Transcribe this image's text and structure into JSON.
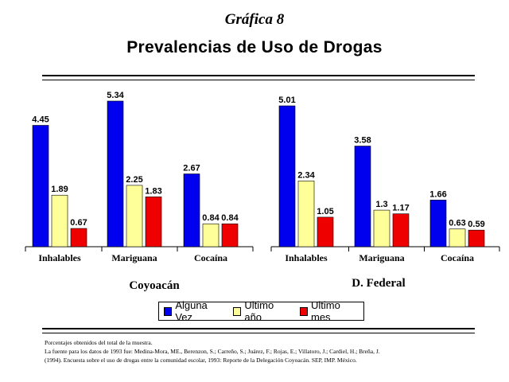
{
  "header": {
    "subtitle": "Gráfica 8",
    "title": "Prevalencias de Uso de Drogas"
  },
  "colors": {
    "Alguna Vez": "#0000ee",
    "Ultimo año": "#ffff99",
    "Ultimo mes": "#ee0000"
  },
  "legend": {
    "items": [
      "Alguna Vez",
      "Ultimo año",
      "Ultimo mes"
    ]
  },
  "chart_data": [
    {
      "type": "bar",
      "title": "Coyoacán",
      "categories": [
        "Inhalables",
        "Mariguana",
        "Cocaína"
      ],
      "value_labels": [
        [
          "4.45",
          "1.89",
          "0.67"
        ],
        [
          "5.34",
          "2.25",
          "1.83"
        ],
        [
          "2.67",
          "0.84",
          "0.84"
        ]
      ],
      "series": [
        {
          "name": "Alguna Vez",
          "values": [
            4.45,
            5.34,
            2.67
          ]
        },
        {
          "name": "Ultimo año",
          "values": [
            1.89,
            2.25,
            0.84
          ]
        },
        {
          "name": "Ultimo mes",
          "values": [
            0.67,
            1.83,
            0.84
          ]
        }
      ],
      "ylim": [
        0,
        5.34
      ],
      "grid": false,
      "legend": "bottom"
    },
    {
      "type": "bar",
      "title": "D. Federal",
      "categories": [
        "Inhalables",
        "Mariguana",
        "Cocaína"
      ],
      "value_labels": [
        [
          "5.01",
          "2.34",
          "1.05"
        ],
        [
          "3.58",
          "1.3",
          "1.17"
        ],
        [
          "1.66",
          "0.63",
          "0.59"
        ]
      ],
      "series": [
        {
          "name": "Alguna Vez",
          "values": [
            5.01,
            3.58,
            1.66
          ]
        },
        {
          "name": "Ultimo año",
          "values": [
            2.34,
            1.3,
            0.63
          ]
        },
        {
          "name": "Ultimo mes",
          "values": [
            1.05,
            1.17,
            0.59
          ]
        }
      ],
      "ylim": [
        0,
        5.01
      ],
      "grid": false,
      "legend": "bottom"
    }
  ],
  "footnote": {
    "line1": "Porcentajes obtenidos del total de la muestra.",
    "line2": "La fuente para los datos de 1993 fue: Medina-Mora, ME., Berenzon, S.; Carreño, S.; Juárez, F.; Rojas, E.; Villatoro, J.; Cardiel, H.; Breña, J.",
    "line3": "(1994). Encuesta sobre el uso de drogas entre la comunidad escolar, 1993: Reporte de la Delegación Coyoacán. SEP, IMP. México."
  }
}
